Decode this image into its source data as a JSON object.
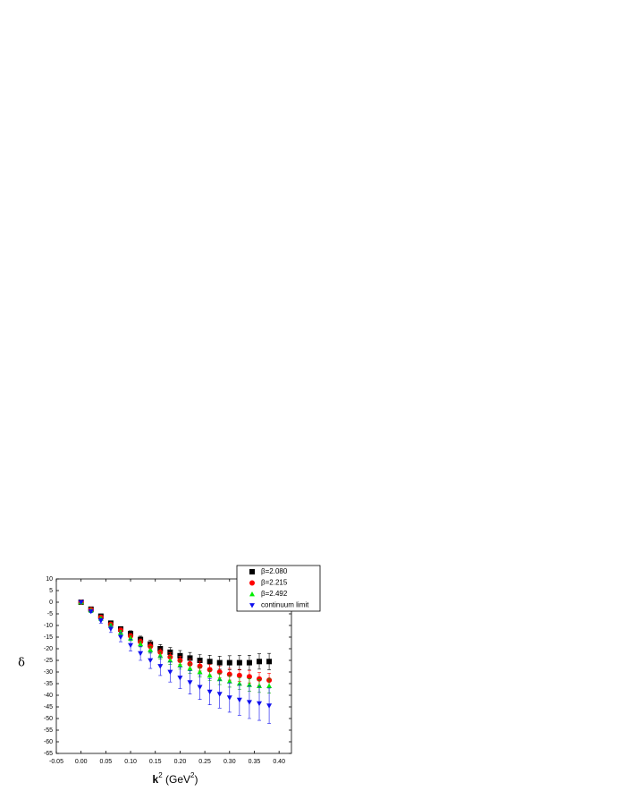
{
  "chart_data": {
    "type": "scatter",
    "ylabel": "δ",
    "xlabel_parts": [
      "k",
      "2",
      " (GeV",
      "2",
      ")"
    ],
    "xlim": [
      -0.05,
      0.425
    ],
    "ylim": [
      -65,
      10
    ],
    "xticks": [
      {
        "value": -0.05,
        "label": "-0.05"
      },
      {
        "value": 0,
        "label": "0.00"
      },
      {
        "value": 0.05,
        "label": "0.05"
      },
      {
        "value": 0.1,
        "label": "0.10"
      },
      {
        "value": 0.15,
        "label": "0.15"
      },
      {
        "value": 0.2,
        "label": "0.20"
      },
      {
        "value": 0.25,
        "label": "0.25"
      },
      {
        "value": 0.3,
        "label": "0.30"
      },
      {
        "value": 0.35,
        "label": "0.35"
      },
      {
        "value": 0.4,
        "label": "0.40"
      }
    ],
    "yticks": [
      10,
      5,
      0,
      -5,
      -10,
      -15,
      -20,
      -25,
      -30,
      -35,
      -40,
      -45,
      -50,
      -55,
      -60,
      -65
    ],
    "legend": "upper right",
    "x": [
      0,
      0.02,
      0.04,
      0.06,
      0.08,
      0.1,
      0.12,
      0.14,
      0.16,
      0.18,
      0.2,
      0.22,
      0.24,
      0.26,
      0.28,
      0.3,
      0.32,
      0.34,
      0.36,
      0.38
    ],
    "series": [
      {
        "name": "β=2.080",
        "color": "#000000",
        "marker": "square",
        "values": [
          0,
          -3,
          -6,
          -9,
          -11.5,
          -13.5,
          -16,
          -18,
          -20,
          -21.5,
          -23,
          -24,
          -25,
          -25.5,
          -26,
          -26,
          -26,
          -26,
          -25.5,
          -25.5
        ],
        "errors": [
          0,
          0.3,
          0.5,
          0.8,
          1,
          1.2,
          1.4,
          1.6,
          1.8,
          2,
          2.2,
          2.4,
          2.5,
          2.7,
          2.8,
          3,
          3.1,
          3.2,
          3.3,
          3.5
        ]
      },
      {
        "name": "β=2.215",
        "color": "#ff0000",
        "marker": "circle",
        "values": [
          0,
          -3.2,
          -6.5,
          -9.5,
          -12,
          -14.5,
          -17,
          -19,
          -21.5,
          -23.5,
          -25,
          -26.5,
          -27.5,
          -29,
          -30,
          -31,
          -31.5,
          -32,
          -33,
          -33.5
        ],
        "errors": [
          0,
          0.3,
          0.5,
          0.7,
          0.9,
          1,
          1.2,
          1.4,
          1.5,
          1.7,
          1.8,
          2,
          2.1,
          2.2,
          2.4,
          2.5,
          2.6,
          2.7,
          2.8,
          3
        ]
      },
      {
        "name": "β=2.492",
        "color": "#00ee00",
        "marker": "triangle-up",
        "values": [
          0,
          -3.5,
          -7,
          -10,
          -13,
          -15.5,
          -18,
          -20.5,
          -23,
          -25,
          -27,
          -28.5,
          -30,
          -31.5,
          -33,
          -34,
          -35,
          -35.5,
          -36,
          -36
        ],
        "errors": [
          0,
          0.3,
          0.5,
          0.7,
          0.9,
          1,
          1.2,
          1.4,
          1.5,
          1.7,
          1.8,
          2,
          2.1,
          2.2,
          2.4,
          2.5,
          2.6,
          2.7,
          2.8,
          3
        ]
      },
      {
        "name": "continuum limit",
        "color": "#1010ee",
        "marker": "triangle-down",
        "values": [
          0,
          -4,
          -8,
          -11.5,
          -15,
          -18.5,
          -22,
          -25,
          -27.5,
          -30,
          -32.5,
          -34.5,
          -36.5,
          -38.5,
          -39.5,
          -41,
          -42,
          -43,
          -43.5,
          -44.5
        ],
        "errors": [
          0,
          0.5,
          1,
          1.5,
          2,
          2.5,
          3,
          3.5,
          4,
          4.3,
          4.6,
          5,
          5.3,
          5.6,
          6,
          6.3,
          6.6,
          7,
          7.3,
          7.6
        ]
      }
    ]
  }
}
